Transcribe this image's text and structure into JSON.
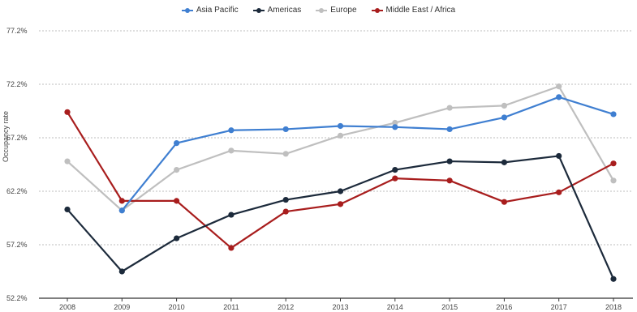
{
  "chart_data": {
    "type": "line",
    "title": "",
    "xlabel": "",
    "ylabel": "Occupancy rate",
    "categories": [
      "2008",
      "2009",
      "2010",
      "2011",
      "2012",
      "2013",
      "2014",
      "2015",
      "2016",
      "2017",
      "2018"
    ],
    "yticks": [
      "52.2%",
      "57.2%",
      "62.2%",
      "67.2%",
      "72.2%",
      "77.2%"
    ],
    "ylim": [
      52.2,
      77.2
    ],
    "grid": true,
    "legend_position": "top-center",
    "series": [
      {
        "name": "Asia Pacific",
        "color": "#3f7fd1",
        "values": [
          null,
          60.4,
          66.7,
          67.9,
          68.0,
          68.3,
          68.2,
          68.0,
          69.1,
          71.0,
          69.4
        ]
      },
      {
        "name": "Americas",
        "color": "#1c2a3b",
        "values": [
          60.5,
          54.7,
          57.8,
          60.0,
          61.4,
          62.2,
          64.2,
          65.0,
          64.9,
          65.5,
          54.0
        ]
      },
      {
        "name": "Europe",
        "color": "#bfbfbf",
        "values": [
          65.0,
          60.4,
          64.2,
          66.0,
          65.7,
          67.4,
          68.6,
          70.0,
          70.2,
          72.0,
          63.2
        ]
      },
      {
        "name": "Middle East / Africa",
        "color": "#a81d1d",
        "values": [
          69.6,
          61.3,
          61.3,
          56.9,
          60.3,
          61.0,
          63.4,
          63.2,
          61.2,
          62.1,
          64.8
        ]
      }
    ]
  }
}
